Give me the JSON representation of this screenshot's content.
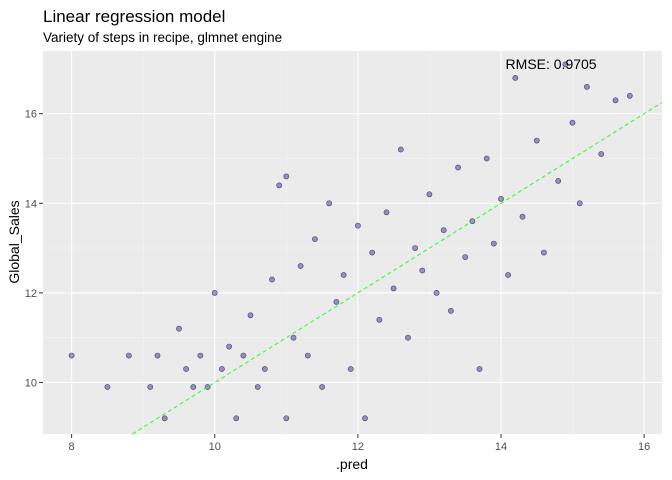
{
  "chart_data": {
    "type": "scatter",
    "title": "Linear regression model",
    "subtitle": "Variety of steps in recipe, glmnet engine",
    "xlabel": ".pred",
    "ylabel": "Global_Sales",
    "xlim": [
      7.6,
      16.25
    ],
    "ylim": [
      8.85,
      17.4
    ],
    "x_ticks": [
      8,
      10,
      12,
      14,
      16
    ],
    "y_ticks": [
      10,
      12,
      14,
      16
    ],
    "x_tick_labels": [
      "8",
      "10",
      "12",
      "14",
      "16"
    ],
    "y_tick_labels": [
      "10",
      "12",
      "14",
      "16"
    ],
    "annotation": {
      "text": "RMSE:  0.9705",
      "x": 14.7,
      "y": 17.0
    },
    "reference_line": {
      "type": "identity",
      "slope": 1,
      "intercept": 0,
      "color": "#33ff33"
    },
    "point_color": "#2b1d80",
    "point_stroke": "#1a0f55",
    "panel_background": "#ebebeb",
    "grid": true,
    "legend": "none",
    "points": [
      [
        8.0,
        10.6
      ],
      [
        8.5,
        9.9
      ],
      [
        8.8,
        10.6
      ],
      [
        9.1,
        9.9
      ],
      [
        9.2,
        10.6
      ],
      [
        9.3,
        9.2
      ],
      [
        9.5,
        11.2
      ],
      [
        9.6,
        10.3
      ],
      [
        9.7,
        9.9
      ],
      [
        9.8,
        10.6
      ],
      [
        9.9,
        9.9
      ],
      [
        10.0,
        12.0
      ],
      [
        10.1,
        10.3
      ],
      [
        10.2,
        10.8
      ],
      [
        10.3,
        9.2
      ],
      [
        10.4,
        10.6
      ],
      [
        10.5,
        11.5
      ],
      [
        10.6,
        9.9
      ],
      [
        10.7,
        10.3
      ],
      [
        10.8,
        12.3
      ],
      [
        10.9,
        14.4
      ],
      [
        11.0,
        9.2
      ],
      [
        11.0,
        14.6
      ],
      [
        11.1,
        11.0
      ],
      [
        11.2,
        12.6
      ],
      [
        11.3,
        10.6
      ],
      [
        11.4,
        13.2
      ],
      [
        11.5,
        9.9
      ],
      [
        11.6,
        14.0
      ],
      [
        11.7,
        11.8
      ],
      [
        11.8,
        12.4
      ],
      [
        11.9,
        10.3
      ],
      [
        12.0,
        13.5
      ],
      [
        12.1,
        9.2
      ],
      [
        12.2,
        12.9
      ],
      [
        12.3,
        11.4
      ],
      [
        12.4,
        13.8
      ],
      [
        12.5,
        12.1
      ],
      [
        12.6,
        15.2
      ],
      [
        12.7,
        11.0
      ],
      [
        12.8,
        13.0
      ],
      [
        12.9,
        12.5
      ],
      [
        13.0,
        14.2
      ],
      [
        13.1,
        12.0
      ],
      [
        13.2,
        13.4
      ],
      [
        13.3,
        11.6
      ],
      [
        13.4,
        14.8
      ],
      [
        13.5,
        12.8
      ],
      [
        13.6,
        13.6
      ],
      [
        13.7,
        10.3
      ],
      [
        13.8,
        15.0
      ],
      [
        13.9,
        13.1
      ],
      [
        14.0,
        14.1
      ],
      [
        14.1,
        12.4
      ],
      [
        14.2,
        16.8
      ],
      [
        14.3,
        13.7
      ],
      [
        14.5,
        15.4
      ],
      [
        14.6,
        12.9
      ],
      [
        14.8,
        14.5
      ],
      [
        14.9,
        17.1
      ],
      [
        15.0,
        15.8
      ],
      [
        15.1,
        14.0
      ],
      [
        15.2,
        16.6
      ],
      [
        15.4,
        15.1
      ],
      [
        15.6,
        16.3
      ],
      [
        15.8,
        16.4
      ]
    ]
  }
}
